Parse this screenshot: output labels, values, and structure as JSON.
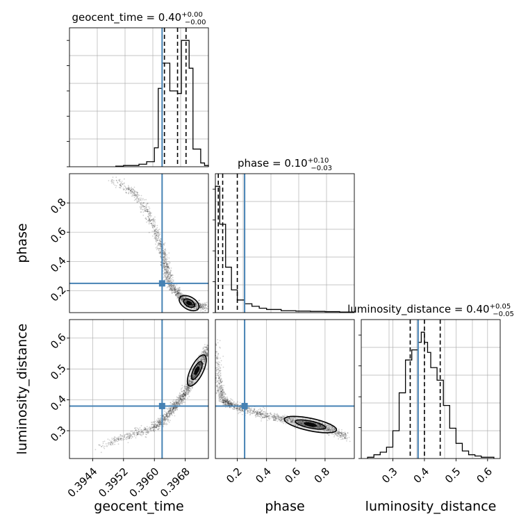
{
  "colors": {
    "truth": "#4682b4",
    "hist": "#000000",
    "grid": "#b0b0b0",
    "density_dark": "#000000"
  },
  "chart_data": [
    {
      "type": "histogram",
      "panel": "geocent_time-1d",
      "param": "geocent_time",
      "title": {
        "prefix": "geocent_time = 0.40",
        "sup": "+0.00",
        "sub": "−0.00"
      },
      "xlim": [
        0.3938,
        0.3974
      ],
      "ylim": [
        0,
        1.1
      ],
      "bins": [
        0.395,
        0.3952,
        0.3954,
        0.3956,
        0.3958,
        0.396,
        0.3961,
        0.3962,
        0.3963,
        0.3964,
        0.3966,
        0.3967,
        0.3968,
        0.3969,
        0.397,
        0.3971,
        0.3972,
        0.3973,
        0.3974
      ],
      "heights": [
        0.005,
        0.01,
        0.01,
        0.02,
        0.04,
        0.15,
        0.62,
        0.82,
        0.82,
        0.6,
        0.58,
        1.0,
        1.0,
        0.78,
        0.14,
        0.14,
        0.03,
        0.01
      ],
      "quantiles": [
        0.39626,
        0.3966,
        0.39682
      ],
      "truth": 0.3962
    },
    {
      "type": "histogram",
      "panel": "phase-1d",
      "param": "phase",
      "title": {
        "prefix": "phase = 0.10",
        "sup": "+0.10",
        "sub": "−0.03"
      },
      "xlim": [
        0.05,
        1.0
      ],
      "ylim": [
        0,
        1.1
      ],
      "bins": [
        0.05,
        0.08,
        0.12,
        0.16,
        0.2,
        0.25,
        0.3,
        0.35,
        0.4,
        0.5,
        0.6,
        0.7,
        0.8,
        0.9,
        1.0
      ],
      "heights": [
        1.0,
        0.7,
        0.36,
        0.18,
        0.1,
        0.07,
        0.05,
        0.035,
        0.025,
        0.015,
        0.012,
        0.01,
        0.008,
        0.005
      ],
      "quantiles": [
        0.07,
        0.1,
        0.2
      ],
      "truth": 0.25
    },
    {
      "type": "histogram",
      "panel": "luminosity_distance-1d",
      "param": "luminosity_distance",
      "title": {
        "prefix": "luminosity_distance = 0.40",
        "sup": "+0.05",
        "sub": "−0.05"
      },
      "xlim": [
        0.2,
        0.64
      ],
      "ylim": [
        0,
        1.1
      ],
      "xticks": [
        0.3,
        0.4,
        0.5,
        0.6
      ],
      "xticklabels": [
        "0.3",
        "0.4",
        "0.5",
        "0.6"
      ],
      "xlabel": "luminosity_distance",
      "bins": [
        0.22,
        0.24,
        0.26,
        0.28,
        0.3,
        0.32,
        0.34,
        0.36,
        0.38,
        0.39,
        0.4,
        0.41,
        0.42,
        0.44,
        0.46,
        0.48,
        0.5,
        0.52,
        0.54,
        0.56,
        0.58,
        0.62
      ],
      "heights": [
        0.01,
        0.03,
        0.05,
        0.09,
        0.22,
        0.52,
        0.78,
        0.86,
        0.92,
        1.0,
        0.92,
        0.84,
        0.72,
        0.62,
        0.42,
        0.24,
        0.12,
        0.06,
        0.03,
        0.02,
        0.01
      ],
      "quantiles": [
        0.355,
        0.4,
        0.45
      ],
      "truth": 0.38
    },
    {
      "type": "scatter",
      "panel": "phase-vs-geocent_time",
      "x_param": "geocent_time",
      "y_param": "phase",
      "xlim": [
        0.3938,
        0.3974
      ],
      "ylim": [
        0.05,
        1.0
      ],
      "yticks": [
        0.2,
        0.4,
        0.6,
        0.8
      ],
      "yticklabels": [
        "0.2",
        "0.4",
        "0.6",
        "0.8"
      ],
      "ylabel": "phase",
      "ridge": [
        [
          0.3948,
          0.96
        ],
        [
          0.3952,
          0.92
        ],
        [
          0.3955,
          0.86
        ],
        [
          0.3958,
          0.75
        ],
        [
          0.396,
          0.62
        ],
        [
          0.3962,
          0.48
        ],
        [
          0.3963,
          0.36
        ],
        [
          0.3964,
          0.25
        ],
        [
          0.3966,
          0.18
        ],
        [
          0.3968,
          0.13
        ],
        [
          0.397,
          0.1
        ],
        [
          0.3973,
          0.09
        ]
      ],
      "truth": [
        0.3962,
        0.25
      ]
    },
    {
      "type": "scatter",
      "panel": "luminosity_distance-vs-geocent_time",
      "x_param": "geocent_time",
      "y_param": "luminosity_distance",
      "xlim": [
        0.3938,
        0.3974
      ],
      "ylim": [
        0.21,
        0.66
      ],
      "xticks": [
        0.3944,
        0.3952,
        0.396,
        0.3968
      ],
      "xticklabels": [
        "0.3944",
        "0.3952",
        "0.3960",
        "0.3968"
      ],
      "yticks": [
        0.3,
        0.4,
        0.5,
        0.6
      ],
      "yticklabels": [
        "0.3",
        "0.4",
        "0.5",
        "0.6"
      ],
      "xlabel": "geocent_time",
      "ylabel": "luminosity_distance",
      "ridge": [
        [
          0.3945,
          0.24
        ],
        [
          0.395,
          0.27
        ],
        [
          0.3955,
          0.29
        ],
        [
          0.396,
          0.31
        ],
        [
          0.3962,
          0.33
        ],
        [
          0.3964,
          0.36
        ],
        [
          0.3966,
          0.39
        ],
        [
          0.3968,
          0.42
        ],
        [
          0.397,
          0.47
        ],
        [
          0.3972,
          0.52
        ],
        [
          0.3974,
          0.57
        ]
      ],
      "truth": [
        0.3962,
        0.38
      ]
    },
    {
      "type": "scatter",
      "panel": "luminosity_distance-vs-phase",
      "x_param": "phase",
      "y_param": "luminosity_distance",
      "xlim": [
        0.05,
        1.0
      ],
      "ylim": [
        0.21,
        0.66
      ],
      "xticks": [
        0.2,
        0.4,
        0.6,
        0.8
      ],
      "xticklabels": [
        "0.2",
        "0.4",
        "0.6",
        "0.8"
      ],
      "xlabel": "phase",
      "ridge": [
        [
          0.06,
          0.6
        ],
        [
          0.07,
          0.5
        ],
        [
          0.08,
          0.44
        ],
        [
          0.1,
          0.4
        ],
        [
          0.15,
          0.385
        ],
        [
          0.25,
          0.37
        ],
        [
          0.4,
          0.35
        ],
        [
          0.6,
          0.33
        ],
        [
          0.8,
          0.31
        ],
        [
          0.95,
          0.28
        ]
      ],
      "truth": [
        0.25,
        0.38
      ]
    }
  ]
}
